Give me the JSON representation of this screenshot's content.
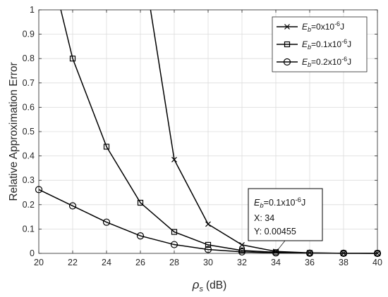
{
  "chart_data": {
    "type": "line",
    "title": "",
    "xlabel": "(dB)",
    "xlabel_symbol": "ρ",
    "xlabel_sub": "s",
    "ylabel": "Relative Approximation Error",
    "xlim": [
      20,
      40
    ],
    "ylim": [
      0,
      1
    ],
    "x_ticks": [
      "20",
      "22",
      "24",
      "26",
      "28",
      "30",
      "32",
      "34",
      "36",
      "38",
      "40"
    ],
    "y_ticks": [
      "0",
      "0.1",
      "0.2",
      "0.3",
      "0.4",
      "0.5",
      "0.6",
      "0.7",
      "0.8",
      "0.9",
      "1"
    ],
    "grid": true,
    "legend_position": "top-right",
    "series": [
      {
        "name": "E_b=0x10^-6 J",
        "marker": "x",
        "x": [
          26.6,
          28,
          30,
          32,
          34,
          36,
          38,
          40
        ],
        "y": [
          1.0,
          0.385,
          0.12,
          0.035,
          0.008,
          0.002,
          0.0005,
          0.0001
        ]
      },
      {
        "name": "E_b=0.1x10^-6 J",
        "marker": "square",
        "x": [
          21.3,
          22,
          24,
          26,
          28,
          30,
          32,
          34,
          36,
          38,
          40
        ],
        "y": [
          1.0,
          0.8,
          0.438,
          0.208,
          0.088,
          0.035,
          0.012,
          0.00455,
          0.0015,
          0.0005,
          0.0001
        ]
      },
      {
        "name": "E_b=0.2x10^-6 J",
        "marker": "circle",
        "x": [
          20,
          22,
          24,
          26,
          28,
          30,
          32,
          34,
          36,
          38,
          40
        ],
        "y": [
          0.262,
          0.195,
          0.128,
          0.072,
          0.036,
          0.016,
          0.006,
          0.002,
          0.0008,
          0.0003,
          0.0001
        ]
      }
    ],
    "legend": [
      {
        "pre": "E",
        "sub": "b",
        "mid": "=0x10",
        "sup": "-6",
        "post": "J",
        "marker": "x"
      },
      {
        "pre": "E",
        "sub": "b",
        "mid": "=0.1x10",
        "sup": "-6",
        "post": "J",
        "marker": "square"
      },
      {
        "pre": "E",
        "sub": "b",
        "mid": "=0.2x10",
        "sup": "-6",
        "post": "J",
        "marker": "circle"
      }
    ],
    "datatip": {
      "x": 34,
      "y": 0.00455,
      "header": {
        "pre": "E",
        "sub": "b",
        "mid": "=0.1x10",
        "sup": "-6",
        "post": "J"
      },
      "x_line": "X: 34",
      "y_line": "Y: 0.00455"
    }
  },
  "colors": {
    "line": "#000000",
    "grid": "#dcdcdc",
    "axis": "#262626"
  }
}
